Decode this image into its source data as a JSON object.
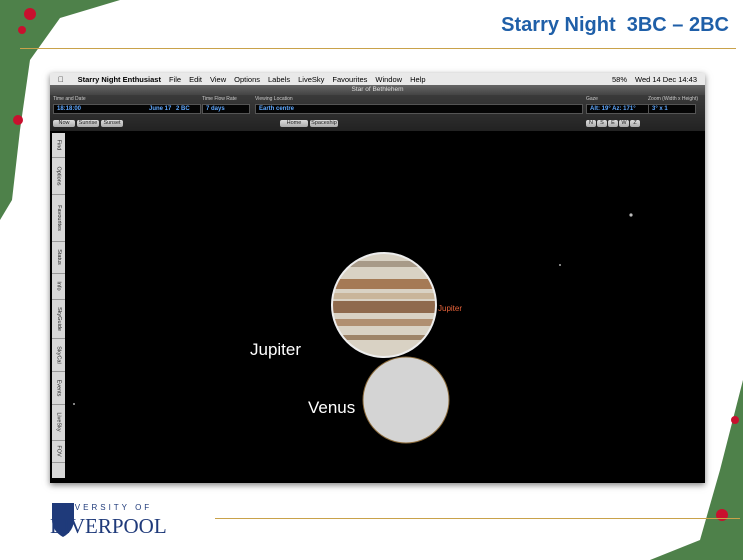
{
  "header": {
    "title": "Starry Night  3BC – 2BC"
  },
  "app": {
    "menu": [
      "Starry Night Enthusiast",
      "File",
      "Edit",
      "View",
      "Options",
      "Labels",
      "LiveSky",
      "Favourites",
      "Window",
      "Help"
    ],
    "status": {
      "battery": "58%",
      "clock": "Wed 14 Dec 14:43"
    },
    "window_title": "Star of Bethlehem",
    "toolbar": {
      "time_label": "Time and Date",
      "time": "18:18:00",
      "date": "June 17",
      "year": "2 BC",
      "rate_label": "Time Flow Rate",
      "rate": "7 days",
      "location_label": "Viewing Location",
      "location": "Earth centre",
      "gaze_label": "Gaze",
      "gaze": "Alt: 19° Az: 171°",
      "zoom_label": "Zoom (Width x Height)",
      "zoom": "3° x 1",
      "time_buttons": [
        "Now",
        "Sunrise",
        "Sunset"
      ],
      "location_buttons": [
        "Home",
        "Spaceship"
      ],
      "gaze_buttons": [
        "N",
        "S",
        "E",
        "W",
        "Z"
      ]
    },
    "side_tabs": [
      "Find",
      "Options",
      "Favourites",
      "Status",
      "Info",
      "SkyGuide",
      "SkyCal",
      "Events",
      "LiveSky",
      "FOV"
    ],
    "sky": {
      "object_label": "Jupiter",
      "jupiter": "Jupiter",
      "venus": "Venus"
    }
  },
  "footer": {
    "university_line1": "UNIVERSITY OF",
    "university_line2": "LIVERPOOL"
  }
}
